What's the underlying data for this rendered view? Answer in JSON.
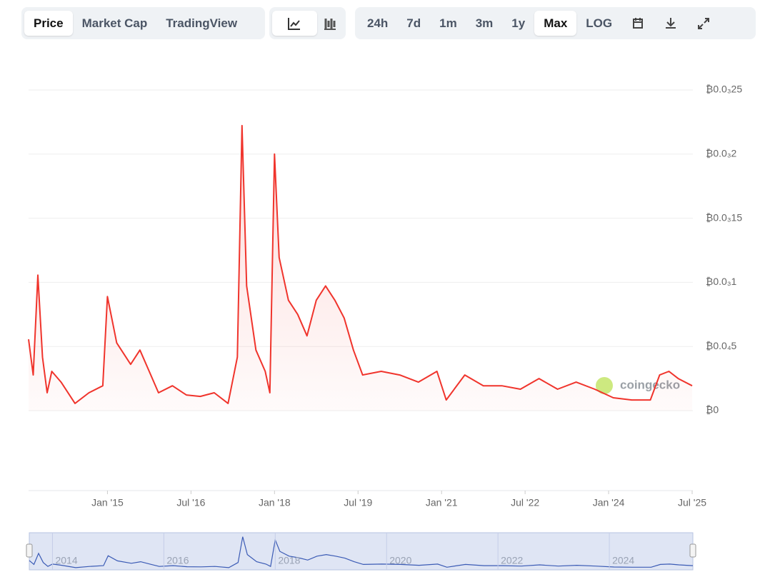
{
  "toolbar": {
    "views": [
      "Price",
      "Market Cap",
      "TradingView"
    ],
    "ranges": [
      "24h",
      "7d",
      "1m",
      "3m",
      "1y",
      "Max"
    ],
    "scale": "LOG"
  },
  "watermark": "coingecko",
  "navigator": {
    "labels": [
      "2014",
      "2016",
      "2018",
      "2020",
      "2022",
      "2024"
    ]
  },
  "chart_data": {
    "type": "line",
    "x": [
      "2013-08",
      "2013-09",
      "2013-10",
      "2013-11",
      "2013-12",
      "2014-01",
      "2014-03",
      "2014-06",
      "2014-09",
      "2014-12",
      "2015-01",
      "2015-03",
      "2015-06",
      "2015-08",
      "2015-10",
      "2015-12",
      "2016-03",
      "2016-06",
      "2016-09",
      "2016-12",
      "2017-03",
      "2017-05",
      "2017-06",
      "2017-07",
      "2017-09",
      "2017-11",
      "2017-12",
      "2018-01",
      "2018-02",
      "2018-04",
      "2018-06",
      "2018-08",
      "2018-10",
      "2018-12",
      "2019-02",
      "2019-04",
      "2019-06",
      "2019-08",
      "2019-12",
      "2020-04",
      "2020-08",
      "2020-12",
      "2021-02",
      "2021-06",
      "2021-10",
      "2022-02",
      "2022-06",
      "2022-10",
      "2023-02",
      "2023-06",
      "2023-10",
      "2024-02",
      "2024-06",
      "2024-10",
      "2024-12",
      "2025-02",
      "2025-04",
      "2025-07"
    ],
    "series": [
      {
        "name": "Price",
        "color": "#f0342c",
        "values": [
          5.56e-05,
          2.78e-05,
          0.0001056,
          4.17e-05,
          1.39e-05,
          3.06e-05,
          2.22e-05,
          5.6e-06,
          1.39e-05,
          1.94e-05,
          8.89e-05,
          5.28e-05,
          3.61e-05,
          4.72e-05,
          3.06e-05,
          1.39e-05,
          1.94e-05,
          1.22e-05,
          1.11e-05,
          1.39e-05,
          5.6e-06,
          4.17e-05,
          0.0002222,
          9.72e-05,
          4.72e-05,
          3.06e-05,
          1.39e-05,
          0.0002,
          0.0001194,
          8.61e-05,
          7.5e-05,
          5.83e-05,
          8.61e-05,
          9.72e-05,
          8.61e-05,
          7.22e-05,
          4.72e-05,
          2.78e-05,
          3.06e-05,
          2.78e-05,
          2.22e-05,
          3.06e-05,
          8.3e-06,
          2.78e-05,
          1.94e-05,
          1.94e-05,
          1.67e-05,
          2.5e-05,
          1.67e-05,
          2.22e-05,
          1.67e-05,
          1e-05,
          8.3e-06,
          8.3e-06,
          2.78e-05,
          3.06e-05,
          2.5e-05,
          1.94e-05
        ]
      }
    ],
    "xlim": [
      "2013-08",
      "2025-07"
    ],
    "xticks": [
      {
        "value": "2015-01",
        "label": "Jan '15"
      },
      {
        "value": "2016-07",
        "label": "Jul '16"
      },
      {
        "value": "2018-01",
        "label": "Jan '18"
      },
      {
        "value": "2019-07",
        "label": "Jul '19"
      },
      {
        "value": "2021-01",
        "label": "Jan '21"
      },
      {
        "value": "2022-07",
        "label": "Jul '22"
      },
      {
        "value": "2024-01",
        "label": "Jan '24"
      },
      {
        "value": "2025-07",
        "label": "Jul '25"
      }
    ],
    "ylim": [
      0,
      0.00025
    ],
    "yticks": [
      {
        "value": 0,
        "label": "₿0"
      },
      {
        "value": 5e-05,
        "label": "₿0.0₄5"
      },
      {
        "value": 0.0001,
        "label": "₿0.0₃1"
      },
      {
        "value": 0.00015,
        "label": "₿0.0₃15"
      },
      {
        "value": 0.0002,
        "label": "₿0.0₃2"
      },
      {
        "value": 0.00025,
        "label": "₿0.0₃25"
      }
    ],
    "grid": true
  }
}
